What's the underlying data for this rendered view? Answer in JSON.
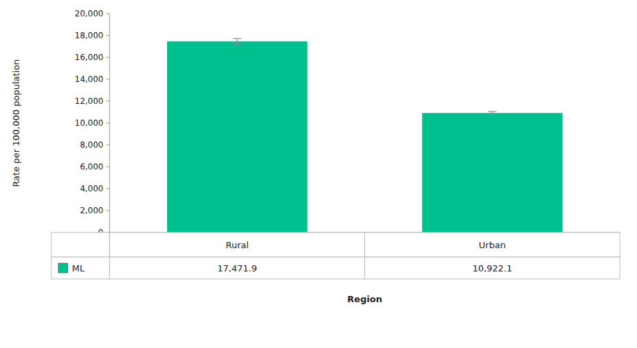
{
  "chart_data": {
    "type": "bar",
    "categories": [
      "Rural",
      "Urban"
    ],
    "series": [
      {
        "name": "ML",
        "color": "#00BF8F",
        "values": [
          17471.9,
          10922.1
        ],
        "errors": [
          250,
          130
        ],
        "value_labels": [
          "17,471.9",
          "10,922.1"
        ]
      }
    ],
    "ylabel": "Rate per 100,000 population",
    "xlabel": "Region",
    "ylim": [
      0,
      20000
    ],
    "yticks": [
      0,
      {
        "value": 2000,
        "label": "2,000"
      },
      {
        "value": 4000,
        "label": "4,000"
      },
      {
        "value": 6000,
        "label": "6,000"
      },
      {
        "value": 8000,
        "label": "8,000"
      },
      {
        "value": 10000,
        "label": "10,000"
      },
      {
        "value": 12000,
        "label": "12,000"
      },
      {
        "value": 14000,
        "label": "14,000"
      },
      {
        "value": 16000,
        "label": "16,000"
      },
      {
        "value": 18000,
        "label": "18,000"
      },
      {
        "value": 20000,
        "label": "20,000"
      }
    ],
    "grid": false
  }
}
